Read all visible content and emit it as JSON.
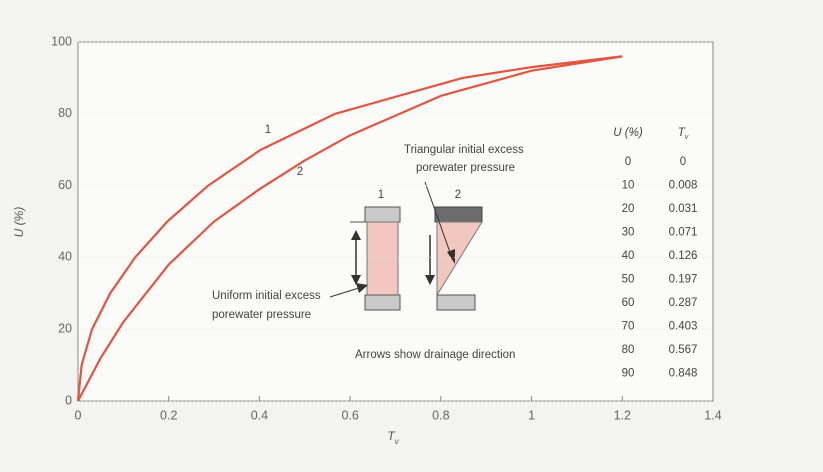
{
  "chart_data": {
    "type": "line",
    "xlabel": "T",
    "xlabel_sub": "v",
    "ylabel": "U (%)",
    "xlim": [
      0,
      1.4
    ],
    "ylim": [
      0,
      100
    ],
    "xticks": [
      0,
      0.2,
      0.4,
      0.6,
      0.8,
      1,
      1.2,
      1.4
    ],
    "yticks": [
      0,
      20,
      40,
      60,
      80,
      100
    ],
    "grid": true,
    "series": [
      {
        "name": "1",
        "color": "#e2553f",
        "x": [
          0,
          0.008,
          0.031,
          0.071,
          0.126,
          0.197,
          0.287,
          0.403,
          0.567,
          0.848,
          1,
          1.2
        ],
        "values": [
          0,
          10,
          20,
          30,
          40,
          50,
          60,
          70,
          80,
          90,
          93,
          96
        ]
      },
      {
        "name": "2",
        "color": "#e2553f",
        "x": [
          0,
          0.05,
          0.1,
          0.2,
          0.3,
          0.4,
          0.5,
          0.6,
          0.8,
          1,
          1.2
        ],
        "values": [
          0,
          12,
          22,
          38,
          50,
          59,
          67,
          74,
          85,
          92,
          96
        ]
      }
    ],
    "annotations": {
      "triangular": [
        "Triangular initial excess",
        "porewater pressure"
      ],
      "uniform": [
        "Uniform initial excess",
        "porewater pressure"
      ],
      "arrows": "Arrows show drainage direction",
      "specimen_1": "1",
      "specimen_2": "2"
    },
    "table": {
      "headers": [
        "U (%)",
        "T",
        "v"
      ],
      "rows": [
        [
          "0",
          "0"
        ],
        [
          "10",
          "0.008"
        ],
        [
          "20",
          "0.031"
        ],
        [
          "30",
          "0.071"
        ],
        [
          "40",
          "0.126"
        ],
        [
          "50",
          "0.197"
        ],
        [
          "60",
          "0.287"
        ],
        [
          "70",
          "0.403"
        ],
        [
          "80",
          "0.567"
        ],
        [
          "90",
          "0.848"
        ]
      ]
    }
  }
}
